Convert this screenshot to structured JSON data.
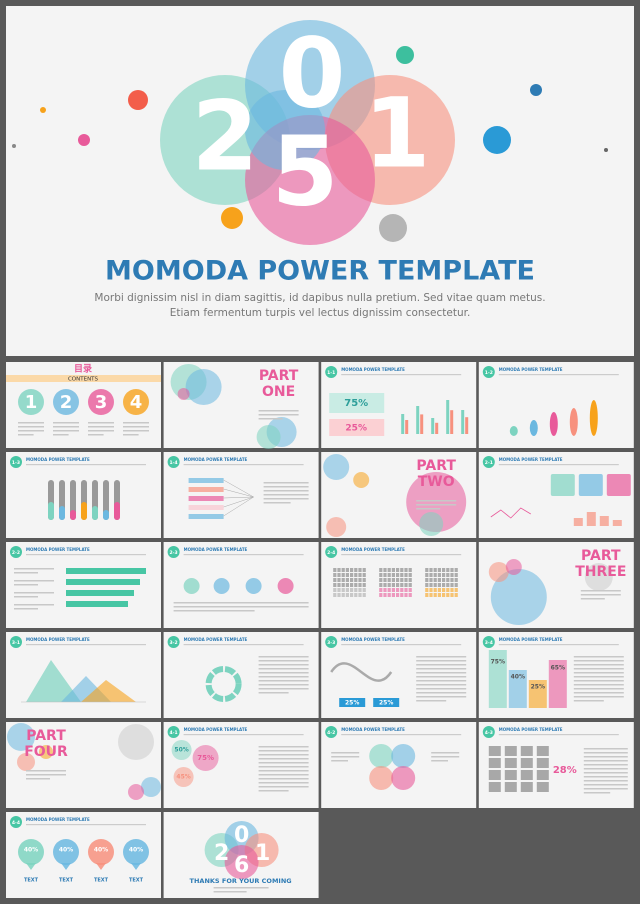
{
  "hero": {
    "digits": [
      "2",
      "0",
      "5",
      "1"
    ],
    "title": "MOMODA POWER TEMPLATE",
    "subtitle": [
      "Morbi dignissim nisl in diam sagittis, id dapibus nulla pretium. Sed vitae quam metus.",
      "Etiam fermentum turpis vel lectus dignissim consectetur."
    ]
  },
  "slides": [
    {
      "title": "目录",
      "subtitle": "CONTENTS",
      "numbers": [
        "1",
        "2",
        "3",
        "4"
      ]
    },
    {
      "part": "PART",
      "word": "ONE"
    },
    {
      "badge": "1-1",
      "heading": "MOMODA POWER TEMPLATE",
      "labels": [
        "75%",
        "25%"
      ]
    },
    {
      "badge": "1-2",
      "heading": "MOMODA POWER TEMPLATE"
    },
    {
      "badge": "1-3",
      "heading": "MOMODA POWER TEMPLATE"
    },
    {
      "badge": "1-4",
      "heading": "MOMODA POWER TEMPLATE"
    },
    {
      "part": "PART",
      "word": "TWO"
    },
    {
      "badge": "2-1",
      "heading": "MOMODA POWER TEMPLATE"
    },
    {
      "badge": "2-2",
      "heading": "MOMODA POWER TEMPLATE"
    },
    {
      "badge": "2-3",
      "heading": "MOMODA POWER TEMPLATE"
    },
    {
      "badge": "2-4",
      "heading": "MOMODA POWER TEMPLATE"
    },
    {
      "part": "PART",
      "word": "THREE"
    },
    {
      "badge": "3-1",
      "heading": "MOMODA POWER TEMPLATE"
    },
    {
      "badge": "3-2",
      "heading": "MOMODA POWER TEMPLATE"
    },
    {
      "badge": "3-3",
      "heading": "MOMODA POWER TEMPLATE",
      "labels": [
        "25%",
        "25%"
      ]
    },
    {
      "badge": "3-4",
      "heading": "MOMODA POWER TEMPLATE",
      "labels": [
        "75%",
        "40%",
        "25%",
        "65%"
      ]
    },
    {
      "part": "PART",
      "word": "FOUR"
    },
    {
      "badge": "4-1",
      "heading": "MOMODA POWER TEMPLATE",
      "labels": [
        "50%",
        "75%",
        "45%"
      ]
    },
    {
      "badge": "4-2",
      "heading": "MOMODA POWER TEMPLATE"
    },
    {
      "badge": "4-3",
      "heading": "MOMODA POWER TEMPLATE",
      "labels": [
        "28%"
      ]
    },
    {
      "badge": "4-4",
      "heading": "MOMODA POWER TEMPLATE",
      "labels": [
        "40%",
        "40%",
        "40%",
        "40%",
        "TEXT",
        "TEXT",
        "TEXT",
        "TEXT"
      ]
    },
    {
      "digits": [
        "2",
        "0",
        "6",
        "1"
      ],
      "title": "THANKS FOR YOUR COMING"
    }
  ]
}
